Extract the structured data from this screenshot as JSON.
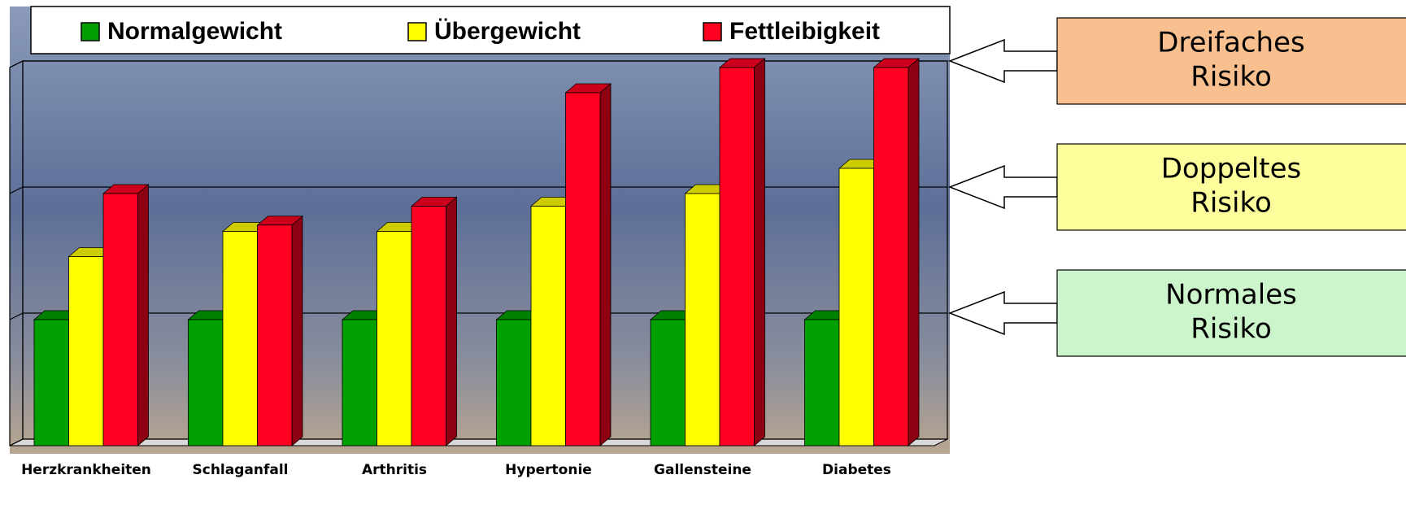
{
  "chart_data": {
    "type": "bar3d",
    "categories": [
      "Herzkrankheiten",
      "Schlaganfall",
      "Arthritis",
      "Hypertonie",
      "Gallensteine",
      "Diabetes"
    ],
    "series": [
      {
        "name": "Normalgewicht",
        "color": "#00a000",
        "values": [
          1,
          1,
          1,
          1,
          1,
          1
        ]
      },
      {
        "name": "Übergewicht",
        "color": "#ffff00",
        "values": [
          1.5,
          1.7,
          1.7,
          1.9,
          2.0,
          2.2
        ]
      },
      {
        "name": "Fettleibigkeit",
        "color": "#ff0020",
        "values": [
          2.0,
          1.75,
          1.9,
          2.8,
          3.0,
          3.0
        ]
      }
    ],
    "ylim": [
      0,
      3
    ],
    "yticks": [
      0,
      1,
      2,
      3
    ],
    "grid": true,
    "legend": "top",
    "annotations": [
      {
        "lines": [
          "Dreifaches",
          "Risiko"
        ],
        "value": 3,
        "color": "#f9c08f"
      },
      {
        "lines": [
          "Doppeltes",
          "Risiko"
        ],
        "value": 2,
        "color": "#fdfd9c"
      },
      {
        "lines": [
          "Normales",
          "Risiko"
        ],
        "value": 1,
        "color": "#ccf5cc"
      }
    ]
  }
}
